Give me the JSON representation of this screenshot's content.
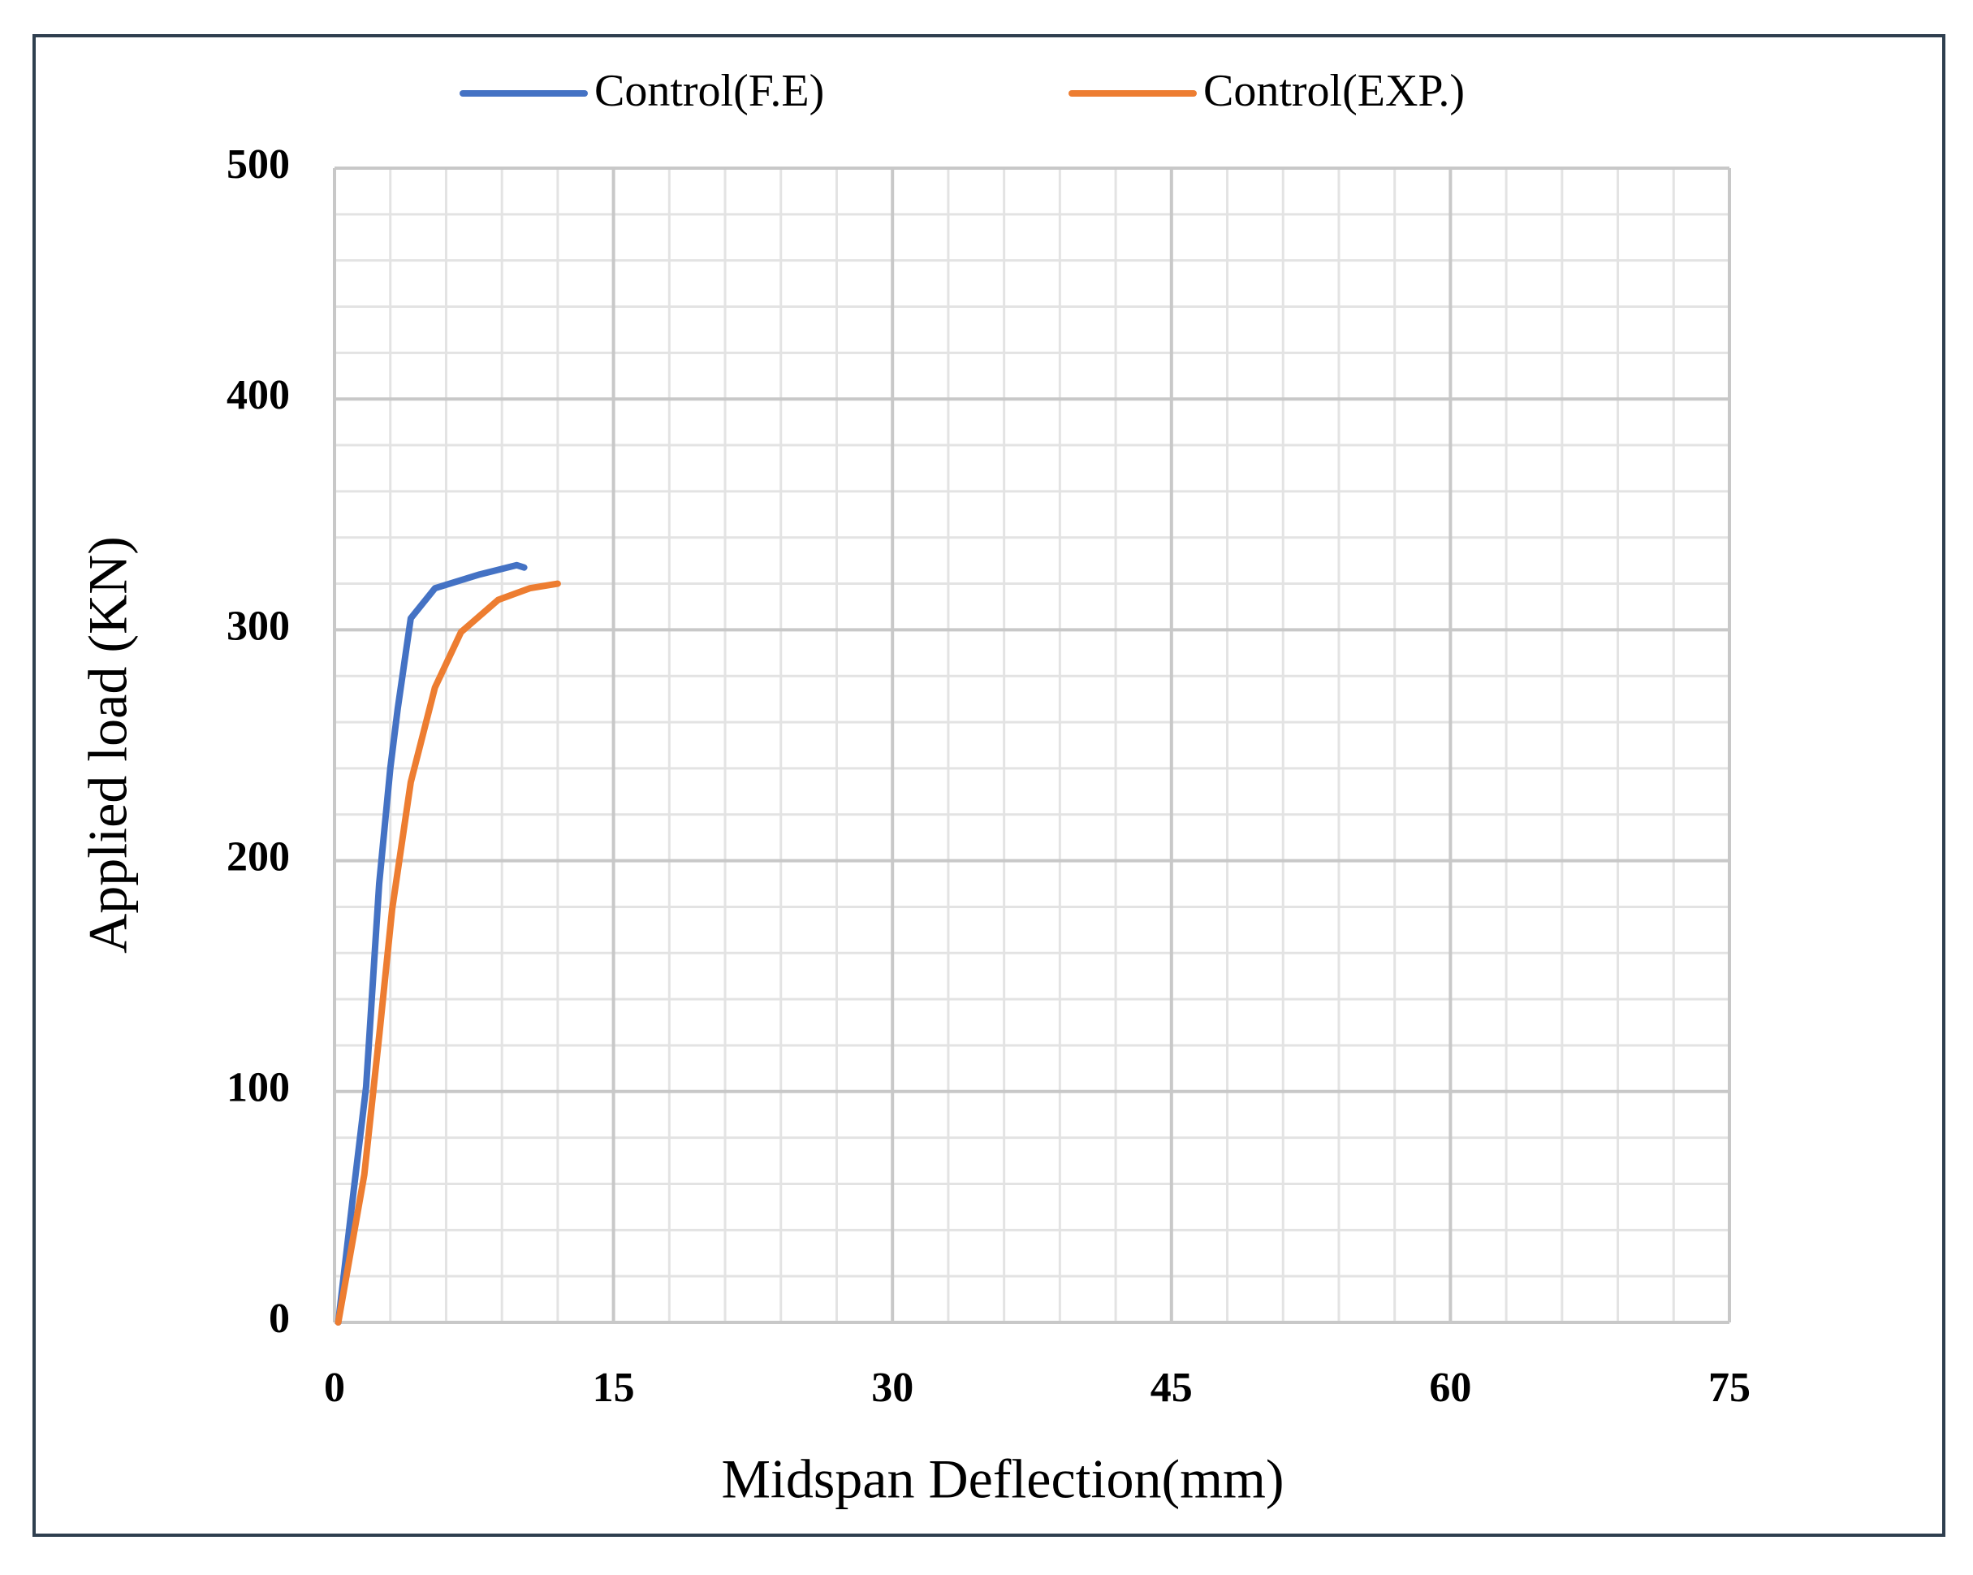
{
  "chart_data": {
    "type": "line",
    "x_label": "Midspan Deflection(mm)",
    "y_label": "Applied load (KN)",
    "series": [
      {
        "name": "Control(F.E)",
        "color": "#4472c4",
        "x": [
          0.2,
          1.0,
          1.7,
          2.4,
          3.0,
          3.4,
          4.1,
          5.4,
          7.8,
          9.8,
          10.2
        ],
        "values": [
          0,
          55,
          102,
          190,
          240,
          266,
          305,
          318,
          324,
          328,
          327
        ]
      },
      {
        "name": "Control(EXP.)",
        "color": "#ed7d31",
        "x": [
          0.2,
          1.6,
          2.4,
          3.1,
          4.1,
          5.4,
          6.8,
          8.8,
          10.5,
          12.0
        ],
        "values": [
          0,
          64,
          124,
          179,
          234,
          275,
          299,
          313,
          318,
          320
        ]
      }
    ],
    "xlim": [
      0,
      75
    ],
    "xticks": [
      0,
      15,
      30,
      45,
      60,
      75
    ],
    "ylim": [
      0,
      500
    ],
    "yticks": [
      0,
      100,
      200,
      300,
      400,
      500
    ],
    "grid": true,
    "minor_grid_divisions": 5,
    "legend": "top"
  }
}
